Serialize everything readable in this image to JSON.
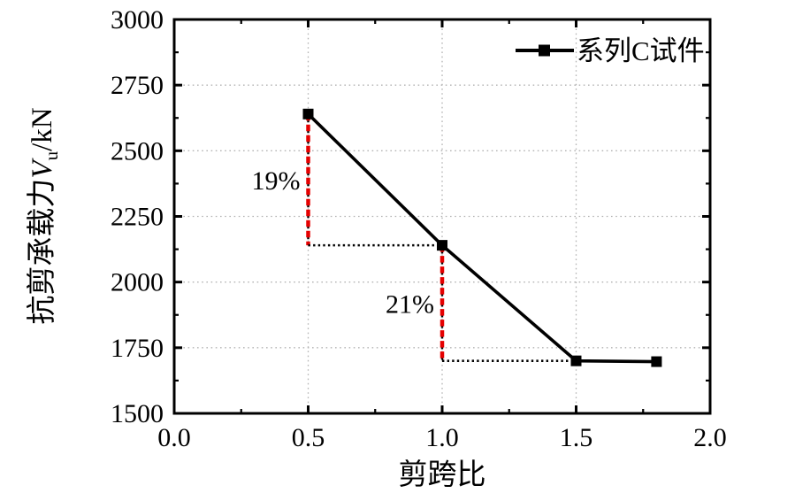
{
  "chart_data": {
    "type": "line",
    "title": "",
    "xlabel": "剪跨比",
    "ylabel": "抗剪承载力Vu/kN",
    "ylabel_parts": {
      "prefix": "抗剪承载力",
      "var": "V",
      "sub": "u",
      "suffix": "/kN"
    },
    "xlim": [
      0.0,
      2.0
    ],
    "ylim": [
      1500,
      3000
    ],
    "x_ticks": [
      0.0,
      0.5,
      1.0,
      1.5,
      2.0
    ],
    "x_tick_labels": [
      "0.0",
      "0.5",
      "1.0",
      "1.5",
      "2.0"
    ],
    "x_minor_ticks": [
      0.25,
      0.75,
      1.25,
      1.75
    ],
    "y_ticks": [
      1500,
      1750,
      2000,
      2250,
      2500,
      2750,
      3000
    ],
    "y_tick_labels": [
      "1500",
      "1750",
      "2000",
      "2250",
      "2500",
      "2750",
      "3000"
    ],
    "y_minor_ticks": [
      1625,
      1875,
      2125,
      2375,
      2625,
      2875
    ],
    "grid": {
      "show": true,
      "style": "dotted",
      "major_only": true,
      "x_gridlines": [
        0.5,
        1.0,
        1.5
      ],
      "y_gridlines": [
        1750,
        2000,
        2250,
        2500,
        2750
      ]
    },
    "legend": {
      "position": "top-right-inside",
      "border": false
    },
    "series": [
      {
        "name": "系列C试件",
        "marker": "square",
        "x": [
          0.5,
          1.0,
          1.5,
          1.8
        ],
        "y": [
          2640,
          2140,
          1700,
          1697
        ]
      }
    ],
    "annotations": [
      {
        "type": "drop-vline",
        "x": 0.5,
        "y_from": 2640,
        "y_to": 2140,
        "label": "19%"
      },
      {
        "type": "helper-hline",
        "y": 2140,
        "x_from": 0.5,
        "x_to": 1.0
      },
      {
        "type": "drop-vline",
        "x": 1.0,
        "y_from": 2140,
        "y_to": 1700,
        "label": "21%"
      },
      {
        "type": "helper-hline",
        "y": 1700,
        "x_from": 1.0,
        "x_to": 1.5
      }
    ],
    "colors": {
      "axis": "#000000",
      "series": "#000000",
      "grid": "#b3b3b3",
      "drop_line": "#e60000",
      "helper_line": "#000000",
      "background": "#ffffff"
    }
  }
}
